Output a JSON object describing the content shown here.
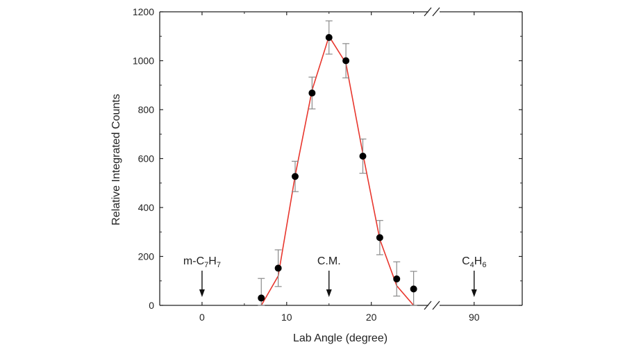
{
  "chart_data": {
    "type": "scatter",
    "xlabel": "Lab Angle (degree)",
    "ylabel": "Relative Integrated Counts",
    "ylim": [
      0,
      1200
    ],
    "y_ticks": [
      "0",
      "200",
      "400",
      "600",
      "800",
      "1000",
      "1200"
    ],
    "x_ticks": [
      "0",
      "10",
      "20",
      "90"
    ],
    "x_axis_break": "between 25 and 90",
    "series": [
      {
        "style": "markers-with-error-bars",
        "color": "#000000",
        "points": [
          {
            "x": 7,
            "y": 30,
            "err": 80
          },
          {
            "x": 9,
            "y": 152,
            "err": 75
          },
          {
            "x": 11,
            "y": 527,
            "err": 62
          },
          {
            "x": 13,
            "y": 868,
            "err": 65
          },
          {
            "x": 15,
            "y": 1095,
            "err": 68
          },
          {
            "x": 17,
            "y": 1000,
            "err": 70
          },
          {
            "x": 19,
            "y": 610,
            "err": 70
          },
          {
            "x": 21,
            "y": 277,
            "err": 70
          },
          {
            "x": 23,
            "y": 108,
            "err": 70
          },
          {
            "x": 25,
            "y": 67,
            "err": 72
          }
        ]
      },
      {
        "style": "line",
        "color": "#e8362d",
        "points": [
          {
            "x": 7,
            "y": 0
          },
          {
            "x": 9,
            "y": 120
          },
          {
            "x": 11,
            "y": 530
          },
          {
            "x": 13,
            "y": 880
          },
          {
            "x": 15,
            "y": 1100
          },
          {
            "x": 17,
            "y": 990
          },
          {
            "x": 19,
            "y": 620
          },
          {
            "x": 21,
            "y": 270
          },
          {
            "x": 23,
            "y": 80
          },
          {
            "x": 25,
            "y": 0
          }
        ]
      }
    ],
    "annotations": [
      {
        "id": "m-c7h7",
        "x": 0,
        "main": "m-C",
        "subs": [
          "7",
          "H",
          "7"
        ]
      },
      {
        "id": "cm",
        "x": 15,
        "main": "C.M.",
        "subs": []
      },
      {
        "id": "c4h6",
        "x": 90,
        "main": "C",
        "subs": [
          "4",
          "H",
          "6"
        ]
      }
    ]
  }
}
